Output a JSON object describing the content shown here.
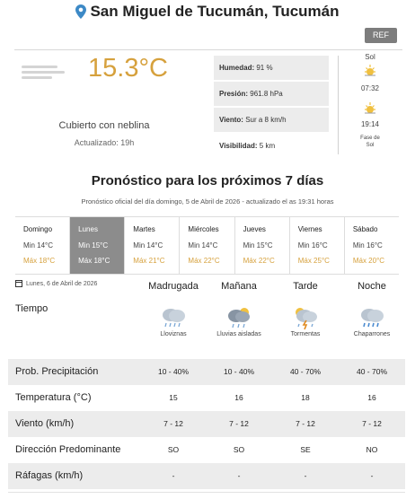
{
  "header": {
    "title": "San Miguel de Tucumán, Tucumán",
    "ref_label": "REF"
  },
  "current": {
    "icon": "fog-icon",
    "temperature": "15.3°C",
    "condition": "Cubierto con neblina",
    "updated": "Actualizado: 19h",
    "stats": [
      {
        "label": "Humedad:",
        "value": "91 %"
      },
      {
        "label": "Presión:",
        "value": "961.8 hPa"
      },
      {
        "label": "Viento:",
        "value": "Sur a 8 km/h"
      },
      {
        "label": "Visibilidad:",
        "value": "5 km"
      }
    ],
    "sun": {
      "label": "Sol",
      "sunrise": "07:32",
      "sunset": "19:14",
      "moon": "Fase de\nSol"
    }
  },
  "forecast": {
    "title": "Pronóstico para los próximos 7 días",
    "subtitle": "Pronóstico oficial del día domingo, 5 de Abril de 2026 - actualizado el as 19:31 horas",
    "days": [
      {
        "name": "Domingo",
        "min": "Min 14°C",
        "max": "Máx 18°C"
      },
      {
        "name": "Lunes",
        "min": "Min 15°C",
        "max": "Máx 18°C",
        "active": true
      },
      {
        "name": "Martes",
        "min": "Min 14°C",
        "max": "Máx 21°C"
      },
      {
        "name": "Miércoles",
        "min": "Min 14°C",
        "max": "Máx 22°C"
      },
      {
        "name": "Jueves",
        "min": "Min 15°C",
        "max": "Máx 22°C"
      },
      {
        "name": "Viernes",
        "min": "Min 16°C",
        "max": "Máx 25°C"
      },
      {
        "name": "Sábado",
        "min": "Min 16°C",
        "max": "Máx 20°C"
      }
    ]
  },
  "detail": {
    "date": "Lunes, 6 de Abril de 2026",
    "periods": [
      "Madrugada",
      "Mañana",
      "Tarde",
      "Noche"
    ],
    "tiempo_label": "Tiempo",
    "weather": [
      {
        "icon": "rain-icon",
        "label": "Lloviznas"
      },
      {
        "icon": "rain-icon",
        "label": "Lluvias aisladas"
      },
      {
        "icon": "storm-icon",
        "label": "Tormentas"
      },
      {
        "icon": "rain-icon",
        "label": "Chaparrones"
      }
    ],
    "rows": [
      {
        "label": "Prob. Precipitación",
        "values": [
          "10 - 40%",
          "10 - 40%",
          "40 - 70%",
          "40 - 70%"
        ]
      },
      {
        "label": "Temperatura (°C)",
        "values": [
          "15",
          "16",
          "18",
          "16"
        ]
      },
      {
        "label": "Viento (km/h)",
        "values": [
          "7 - 12",
          "7 - 12",
          "7 - 12",
          "7 - 12"
        ]
      },
      {
        "label": "Dirección Predominante",
        "values": [
          "SO",
          "SO",
          "SE",
          "NO"
        ]
      },
      {
        "label": "Ráfagas (km/h)",
        "values": [
          "-",
          "-",
          "-",
          "-"
        ]
      }
    ]
  },
  "colors": {
    "accent": "#d6a13d",
    "active_day": "#8c8c8c",
    "shade": "#ececec",
    "pin": "#3c89c6"
  }
}
